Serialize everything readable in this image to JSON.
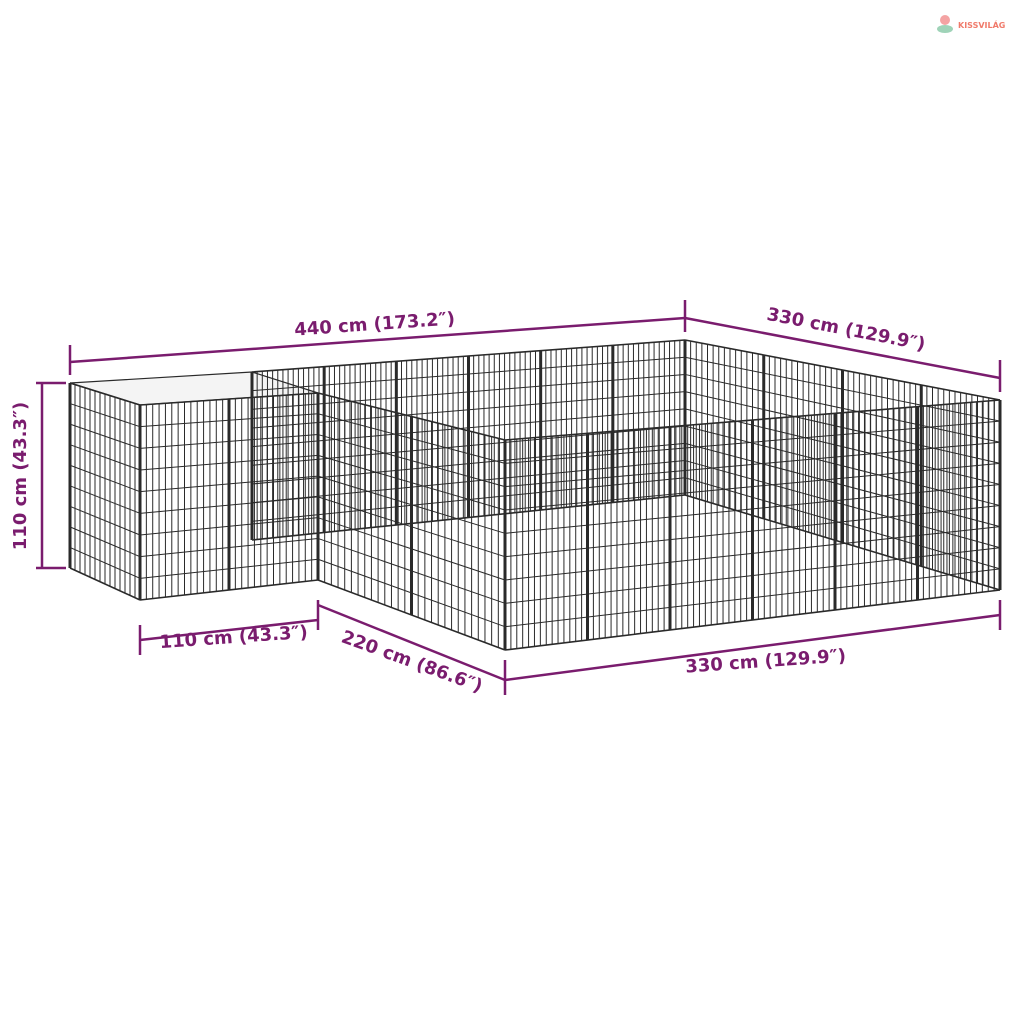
{
  "logo": {
    "text": "KISSVILÁG"
  },
  "colors": {
    "dimension": "#7a1c6e",
    "fence": "#2a2a2a",
    "roof": "#f4f4f4",
    "logo": "#f07a6a"
  },
  "dimensions": {
    "total_length": "440 cm (173.2″)",
    "total_depth": "330 cm (129.9″)",
    "height": "110 cm (43.3″)",
    "kennel_width": "110 cm (43.3″)",
    "side_length": "220 cm (86.6″)",
    "front_length": "330 cm (129.9″)"
  }
}
